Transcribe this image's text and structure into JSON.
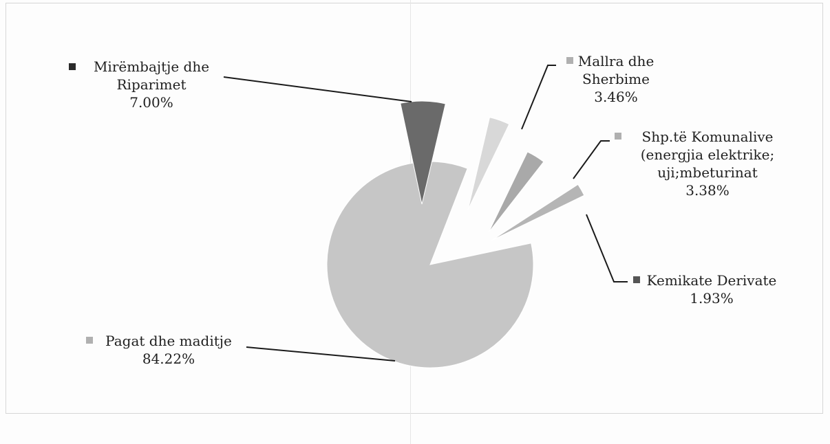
{
  "chart_data": {
    "type": "pie",
    "exploded": true,
    "slices": [
      {
        "name": "Pagat dhe maditje",
        "value": 84.22,
        "label": "84.22%",
        "color": "#c6c6c6",
        "lines": [
          "Pagat dhe maditje",
          "84.22%"
        ]
      },
      {
        "name": "Mirëmbajtje dhe Riparimet",
        "value": 7.0,
        "label": "7.00%",
        "color": "#6a6a6a",
        "lines": [
          "Mirëmbajtje dhe",
          "Riparimet",
          "7.00%"
        ]
      },
      {
        "name": "Mallra dhe Sherbime",
        "value": 3.46,
        "label": "3.46%",
        "color": "#d8d8d8",
        "lines": [
          "Mallra dhe",
          "Sherbime",
          "3.46%"
        ]
      },
      {
        "name": "Shp.të Komunalive (energjia elektrike; uji;mbeturinat",
        "value": 3.38,
        "label": "3.38%",
        "color": "#a9a9a9",
        "lines": [
          "Shp.të Komunalive",
          "(energjia elektrike;",
          "uji;mbeturinat",
          "3.38%"
        ]
      },
      {
        "name": "Kemikate Derivate",
        "value": 1.93,
        "label": "1.93%",
        "color": "#b5b5b5",
        "lines": [
          "Kemikate Derivate",
          "1.93%"
        ]
      }
    ],
    "legend": "none",
    "grid": false
  }
}
